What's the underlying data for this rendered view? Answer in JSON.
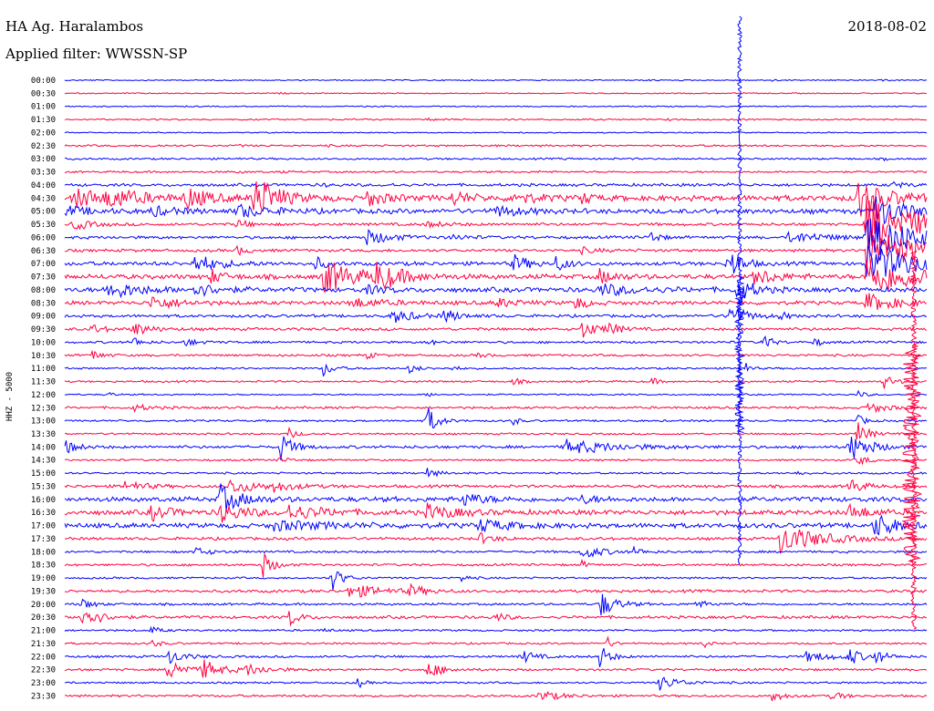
{
  "header": {
    "station": "HA Ag. Haralambos",
    "filter": "Applied filter: WWSSN-SP",
    "date": "2018-08-02"
  },
  "chart_data": {
    "type": "line",
    "title": "HA Ag. Haralambos",
    "subtitle": "Applied filter: WWSSN-SP",
    "date": "2018-08-02",
    "ylabel": "HHZ - 5000",
    "xlabel": "",
    "row_interval_minutes": 30,
    "colors": {
      "odd_rows": "#0000ff",
      "even_rows": "#ff0040"
    },
    "grid": false,
    "legend": "none",
    "tick_labels": [
      "00:00",
      "00:30",
      "01:00",
      "01:30",
      "02:00",
      "02:30",
      "03:00",
      "03:30",
      "04:00",
      "04:30",
      "05:00",
      "05:30",
      "06:00",
      "06:30",
      "07:00",
      "07:30",
      "08:00",
      "08:30",
      "09:00",
      "09:30",
      "10:00",
      "10:30",
      "11:00",
      "11:30",
      "12:00",
      "12:30",
      "13:00",
      "13:30",
      "14:00",
      "14:30",
      "15:00",
      "15:30",
      "16:00",
      "16:30",
      "17:00",
      "17:30",
      "18:00",
      "18:30",
      "19:00",
      "19:30",
      "20:00",
      "20:30",
      "21:00",
      "21:30",
      "22:00",
      "22:30",
      "23:00",
      "23:30"
    ],
    "rows": [
      {
        "time": "00:00",
        "noise": 0.6,
        "events": [
          [
            0.68,
            5,
            1
          ],
          [
            0.82,
            6,
            1.2
          ],
          [
            0.95,
            5,
            0.8
          ]
        ]
      },
      {
        "time": "00:30",
        "noise": 0.6,
        "events": [
          [
            0.25,
            4,
            0.8
          ]
        ]
      },
      {
        "time": "01:00",
        "noise": 0.6,
        "events": [
          [
            0.36,
            6,
            0.8
          ]
        ]
      },
      {
        "time": "01:30",
        "noise": 0.8,
        "events": [
          [
            0.42,
            12,
            1.2
          ],
          [
            0.6,
            6,
            0.8
          ],
          [
            0.7,
            12,
            0.8
          ],
          [
            0.78,
            6,
            1
          ]
        ]
      },
      {
        "time": "02:00",
        "noise": 0.6,
        "events": [
          [
            0.78,
            5,
            1
          ]
        ]
      },
      {
        "time": "02:30",
        "noise": 1,
        "events": [
          [
            0.1,
            8,
            1.2
          ],
          [
            0.2,
            8,
            1
          ],
          [
            0.3,
            8,
            0.8
          ]
        ]
      },
      {
        "time": "03:00",
        "noise": 1,
        "events": [
          [
            0.2,
            6,
            0.8
          ],
          [
            0.58,
            6,
            0.8
          ],
          [
            0.95,
            6,
            1
          ]
        ]
      },
      {
        "time": "03:30",
        "noise": 1,
        "events": [
          [
            0.2,
            8,
            1
          ],
          [
            0.25,
            6,
            1
          ],
          [
            0.55,
            6,
            0.8
          ]
        ]
      },
      {
        "time": "04:00",
        "noise": 1.5,
        "events": [
          [
            0.3,
            6,
            1.5
          ],
          [
            0.38,
            5,
            1.2
          ],
          [
            0.77,
            5,
            1.5
          ],
          [
            0.96,
            15,
            3
          ]
        ]
      },
      {
        "time": "04:30",
        "noise": 3,
        "events": [
          [
            0.01,
            40,
            10
          ],
          [
            0.05,
            30,
            8
          ],
          [
            0.14,
            20,
            12
          ],
          [
            0.22,
            20,
            30
          ],
          [
            0.35,
            20,
            8
          ],
          [
            0.45,
            15,
            8
          ],
          [
            0.52,
            20,
            7
          ],
          [
            0.6,
            10,
            6
          ],
          [
            0.92,
            30,
            20
          ]
        ]
      },
      {
        "time": "05:00",
        "noise": 2.5,
        "events": [
          [
            0.0,
            25,
            5
          ],
          [
            0.1,
            25,
            5
          ],
          [
            0.2,
            30,
            7
          ],
          [
            0.5,
            25,
            6
          ],
          [
            0.94,
            30,
            18
          ]
        ]
      },
      {
        "time": "05:30",
        "noise": 1.5,
        "events": [
          [
            0.01,
            15,
            7
          ],
          [
            0.2,
            10,
            6
          ],
          [
            0.42,
            20,
            3
          ],
          [
            0.93,
            60,
            30
          ]
        ]
      },
      {
        "time": "06:00",
        "noise": 1.5,
        "events": [
          [
            0.35,
            25,
            8
          ],
          [
            0.45,
            15,
            3
          ],
          [
            0.68,
            8,
            8
          ],
          [
            0.84,
            40,
            6
          ],
          [
            0.93,
            60,
            25
          ]
        ]
      },
      {
        "time": "06:30",
        "noise": 1.5,
        "events": [
          [
            0.2,
            10,
            5
          ],
          [
            0.6,
            15,
            3
          ],
          [
            0.93,
            60,
            25
          ]
        ]
      },
      {
        "time": "07:00",
        "noise": 2,
        "events": [
          [
            0.15,
            25,
            10
          ],
          [
            0.29,
            10,
            8
          ],
          [
            0.52,
            15,
            10
          ],
          [
            0.57,
            12,
            8
          ],
          [
            0.77,
            12,
            20
          ],
          [
            0.93,
            60,
            20
          ]
        ]
      },
      {
        "time": "07:30",
        "noise": 2.5,
        "events": [
          [
            0.17,
            12,
            8
          ],
          [
            0.3,
            30,
            20
          ],
          [
            0.36,
            25,
            15
          ],
          [
            0.62,
            15,
            8
          ],
          [
            0.8,
            20,
            10
          ],
          [
            0.93,
            60,
            20
          ]
        ]
      },
      {
        "time": "08:00",
        "noise": 2.5,
        "events": [
          [
            0.05,
            30,
            10
          ],
          [
            0.15,
            20,
            8
          ],
          [
            0.35,
            20,
            4
          ],
          [
            0.62,
            40,
            6
          ],
          [
            0.78,
            15,
            15
          ]
        ]
      },
      {
        "time": "08:30",
        "noise": 2,
        "events": [
          [
            0.1,
            25,
            8
          ],
          [
            0.33,
            35,
            5
          ],
          [
            0.5,
            20,
            5
          ],
          [
            0.59,
            12,
            8
          ],
          [
            0.93,
            30,
            10
          ]
        ]
      },
      {
        "time": "09:00",
        "noise": 1.5,
        "events": [
          [
            0.38,
            20,
            8
          ],
          [
            0.44,
            15,
            7
          ],
          [
            0.77,
            15,
            15
          ],
          [
            0.83,
            6,
            6
          ]
        ]
      },
      {
        "time": "09:30",
        "noise": 1.5,
        "events": [
          [
            0.03,
            15,
            5
          ],
          [
            0.08,
            15,
            8
          ],
          [
            0.6,
            15,
            10
          ],
          [
            0.63,
            10,
            8
          ]
        ]
      },
      {
        "time": "10:00",
        "noise": 1.2,
        "events": [
          [
            0.08,
            8,
            6
          ],
          [
            0.14,
            12,
            4
          ],
          [
            0.42,
            10,
            3
          ],
          [
            0.81,
            8,
            10
          ],
          [
            0.87,
            6,
            6
          ]
        ]
      },
      {
        "time": "10:30",
        "noise": 1.2,
        "events": [
          [
            0.03,
            10,
            6
          ],
          [
            0.35,
            8,
            4
          ],
          [
            0.48,
            8,
            3
          ]
        ]
      },
      {
        "time": "11:00",
        "noise": 1,
        "events": [
          [
            0.3,
            10,
            8
          ],
          [
            0.4,
            8,
            6
          ],
          [
            0.45,
            5,
            4
          ],
          [
            0.79,
            5,
            6
          ]
        ]
      },
      {
        "time": "11:30",
        "noise": 1,
        "events": [
          [
            0.52,
            8,
            4
          ],
          [
            0.68,
            6,
            5
          ],
          [
            0.95,
            10,
            8
          ]
        ]
      },
      {
        "time": "12:00",
        "noise": 0.8,
        "events": [
          [
            0.05,
            6,
            3
          ],
          [
            0.42,
            10,
            2
          ],
          [
            0.92,
            8,
            4
          ]
        ]
      },
      {
        "time": "12:30",
        "noise": 1.2,
        "events": [
          [
            0.08,
            15,
            4
          ],
          [
            0.93,
            20,
            6
          ]
        ]
      },
      {
        "time": "13:00",
        "noise": 1,
        "events": [
          [
            0.42,
            10,
            18
          ],
          [
            0.52,
            6,
            5
          ],
          [
            0.92,
            8,
            6
          ]
        ]
      },
      {
        "time": "13:30",
        "noise": 1,
        "events": [
          [
            0.26,
            8,
            6
          ],
          [
            0.92,
            10,
            14
          ]
        ]
      },
      {
        "time": "14:00",
        "noise": 1.5,
        "events": [
          [
            0.0,
            12,
            8
          ],
          [
            0.25,
            12,
            16
          ],
          [
            0.58,
            50,
            8
          ],
          [
            0.91,
            20,
            16
          ]
        ]
      },
      {
        "time": "14:30",
        "noise": 1,
        "events": [
          [
            0.25,
            8,
            4
          ],
          [
            0.92,
            10,
            6
          ]
        ]
      },
      {
        "time": "15:00",
        "noise": 1,
        "events": [
          [
            0.42,
            10,
            6
          ],
          [
            0.85,
            6,
            3
          ]
        ]
      },
      {
        "time": "15:30",
        "noise": 1.5,
        "events": [
          [
            0.07,
            20,
            6
          ],
          [
            0.19,
            30,
            8
          ],
          [
            0.24,
            20,
            5
          ],
          [
            0.91,
            12,
            10
          ]
        ]
      },
      {
        "time": "16:00",
        "noise": 2.5,
        "events": [
          [
            0.18,
            20,
            16
          ],
          [
            0.46,
            20,
            8
          ],
          [
            0.6,
            15,
            4
          ]
        ]
      },
      {
        "time": "16:30",
        "noise": 2.5,
        "events": [
          [
            0.1,
            20,
            8
          ],
          [
            0.18,
            25,
            10
          ],
          [
            0.26,
            35,
            8
          ],
          [
            0.42,
            30,
            8
          ],
          [
            0.91,
            20,
            8
          ]
        ]
      },
      {
        "time": "17:00",
        "noise": 2.5,
        "events": [
          [
            0.24,
            60,
            5
          ],
          [
            0.48,
            30,
            7
          ],
          [
            0.94,
            20,
            14
          ]
        ]
      },
      {
        "time": "17:30",
        "noise": 1.5,
        "events": [
          [
            0.48,
            15,
            6
          ],
          [
            0.83,
            40,
            16
          ]
        ]
      },
      {
        "time": "18:00",
        "noise": 1.2,
        "events": [
          [
            0.15,
            15,
            5
          ],
          [
            0.6,
            20,
            8
          ],
          [
            0.66,
            10,
            4
          ]
        ]
      },
      {
        "time": "18:30",
        "noise": 1.2,
        "events": [
          [
            0.23,
            10,
            14
          ],
          [
            0.6,
            6,
            4
          ]
        ]
      },
      {
        "time": "19:00",
        "noise": 1,
        "events": [
          [
            0.31,
            10,
            14
          ],
          [
            0.46,
            8,
            4
          ]
        ]
      },
      {
        "time": "19:30",
        "noise": 1.5,
        "events": [
          [
            0.33,
            30,
            8
          ],
          [
            0.4,
            15,
            6
          ]
        ]
      },
      {
        "time": "20:00",
        "noise": 1.2,
        "events": [
          [
            0.02,
            10,
            6
          ],
          [
            0.62,
            15,
            16
          ],
          [
            0.73,
            15,
            4
          ]
        ]
      },
      {
        "time": "20:30",
        "noise": 1.5,
        "events": [
          [
            0.02,
            15,
            16
          ],
          [
            0.26,
            10,
            10
          ],
          [
            0.5,
            10,
            5
          ]
        ]
      },
      {
        "time": "21:00",
        "noise": 1,
        "events": [
          [
            0.1,
            10,
            4
          ],
          [
            0.3,
            6,
            3
          ]
        ]
      },
      {
        "time": "21:30",
        "noise": 1,
        "events": [
          [
            0.1,
            10,
            4
          ],
          [
            0.63,
            6,
            6
          ],
          [
            0.74,
            6,
            5
          ]
        ]
      },
      {
        "time": "22:00",
        "noise": 1.2,
        "events": [
          [
            0.12,
            15,
            8
          ],
          [
            0.53,
            12,
            8
          ],
          [
            0.62,
            10,
            14
          ],
          [
            0.86,
            30,
            5
          ],
          [
            0.91,
            10,
            10
          ],
          [
            0.94,
            10,
            8
          ]
        ]
      },
      {
        "time": "22:30",
        "noise": 1.2,
        "events": [
          [
            0.12,
            15,
            14
          ],
          [
            0.16,
            20,
            10
          ],
          [
            0.21,
            20,
            6
          ],
          [
            0.42,
            15,
            10
          ]
        ]
      },
      {
        "time": "23:00",
        "noise": 1,
        "events": [
          [
            0.34,
            6,
            6
          ],
          [
            0.69,
            20,
            8
          ]
        ]
      },
      {
        "time": "23:30",
        "noise": 1.2,
        "events": [
          [
            0.55,
            20,
            6
          ],
          [
            0.82,
            12,
            6
          ],
          [
            0.89,
            10,
            6
          ]
        ]
      }
    ],
    "long_events": [
      {
        "x": 0.783,
        "from_row": 0,
        "to_row": 37,
        "color": "#0000ff",
        "amp": 2
      },
      {
        "x": 0.783,
        "from_row": 15,
        "to_row": 27,
        "color": "#0000ff",
        "amp": 5
      },
      {
        "x": 0.985,
        "from_row": 13,
        "to_row": 42,
        "color": "#ff0040",
        "amp": 3
      },
      {
        "x": 0.983,
        "from_row": 20,
        "to_row": 37,
        "color": "#ff0040",
        "amp": 10
      }
    ]
  }
}
